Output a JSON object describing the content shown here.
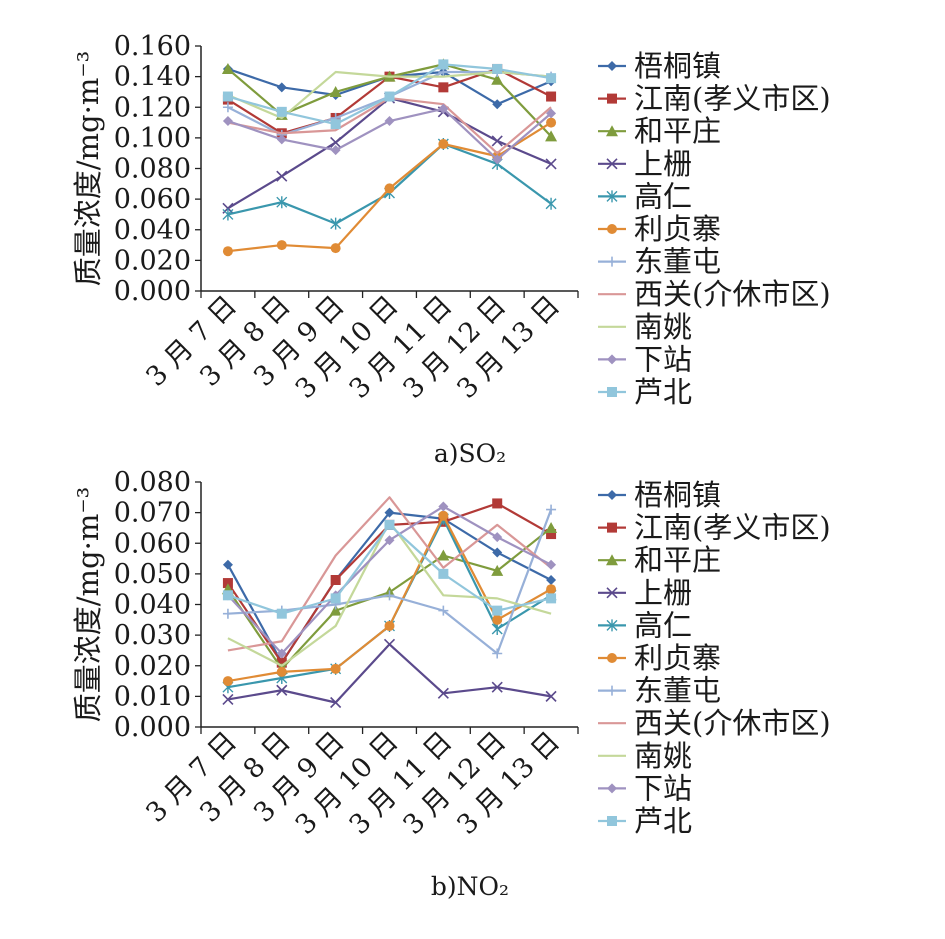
{
  "colors": [
    "#3d6aa8",
    "#b23a37",
    "#7f9c3d",
    "#5b4a8c",
    "#3a97ad",
    "#e08b35",
    "#97b0d8",
    "#d99797",
    "#c4d89a",
    "#9f92c0",
    "#91c6dc"
  ],
  "legend": [
    "梧桐镇",
    "江南(孝义市区)",
    "和平庄",
    "上栅",
    "高仁",
    "利贞寨",
    "东董屯",
    "西关(介休市区)",
    "南姚",
    "下站",
    "芦北"
  ],
  "chart_data": [
    {
      "type": "line",
      "caption": "a)SO₂",
      "ylabel": "质量浓度/mg·m⁻³",
      "categories": [
        "3 月 7 日",
        "3 月 8 日",
        "3 月 9 日",
        "3 月 10 日",
        "3 月 11 日",
        "3 月 12 日",
        "3 月 13 日"
      ],
      "ylim": [
        0.0,
        0.16
      ],
      "yticks": [
        "0.000",
        "0.020",
        "0.040",
        "0.060",
        "0.080",
        "0.100",
        "0.120",
        "0.140",
        "0.160"
      ],
      "series": [
        {
          "name": "梧桐镇",
          "values": [
            0.145,
            0.133,
            0.128,
            0.14,
            0.143,
            0.122,
            0.137
          ]
        },
        {
          "name": "江南(孝义市区)",
          "values": [
            0.125,
            0.103,
            0.113,
            0.14,
            0.133,
            0.145,
            0.127
          ]
        },
        {
          "name": "和平庄",
          "values": [
            0.145,
            0.115,
            0.13,
            0.14,
            0.148,
            0.138,
            0.101
          ]
        },
        {
          "name": "上栅",
          "values": [
            0.054,
            0.075,
            0.097,
            0.126,
            0.117,
            0.098,
            0.083
          ]
        },
        {
          "name": "高仁",
          "values": [
            0.05,
            0.058,
            0.044,
            0.064,
            0.096,
            0.083,
            0.057
          ]
        },
        {
          "name": "利贞寨",
          "values": [
            0.026,
            0.03,
            0.028,
            0.067,
            0.096,
            0.088,
            0.11
          ]
        },
        {
          "name": "东董屯",
          "values": [
            0.12,
            0.102,
            0.113,
            0.127,
            0.143,
            0.143,
            0.14
          ]
        },
        {
          "name": "西关(介休市区)",
          "values": [
            0.11,
            0.103,
            0.105,
            0.126,
            0.122,
            0.09,
            0.12
          ]
        },
        {
          "name": "南姚",
          "values": [
            0.128,
            0.113,
            0.143,
            0.14,
            0.14,
            0.143,
            0.14
          ]
        },
        {
          "name": "下站",
          "values": [
            0.111,
            0.099,
            0.092,
            0.111,
            0.119,
            0.086,
            0.116
          ]
        },
        {
          "name": "芦北",
          "values": [
            0.127,
            0.117,
            0.109,
            0.127,
            0.148,
            0.145,
            0.139
          ]
        }
      ]
    },
    {
      "type": "line",
      "caption": "b)NO₂",
      "ylabel": "质量浓度/mg·m⁻³",
      "categories": [
        "3 月 7 日",
        "3 月 8 日",
        "3 月 9 日",
        "3 月 10 日",
        "3 月 11 日",
        "3 月 12 日",
        "3 月 13 日"
      ],
      "ylim": [
        0.0,
        0.08
      ],
      "yticks": [
        "0.000",
        "0.010",
        "0.020",
        "0.030",
        "0.040",
        "0.050",
        "0.060",
        "0.070",
        "0.080"
      ],
      "series": [
        {
          "name": "梧桐镇",
          "values": [
            0.053,
            0.021,
            0.048,
            0.07,
            0.068,
            0.057,
            0.048
          ]
        },
        {
          "name": "江南(孝义市区)",
          "values": [
            0.047,
            0.021,
            0.048,
            0.066,
            0.067,
            0.073,
            0.063
          ]
        },
        {
          "name": "和平庄",
          "values": [
            0.045,
            0.019,
            0.038,
            0.044,
            0.056,
            0.051,
            0.065
          ]
        },
        {
          "name": "上栅",
          "values": [
            0.009,
            0.012,
            0.008,
            0.027,
            0.011,
            0.013,
            0.01
          ]
        },
        {
          "name": "高仁",
          "values": [
            0.013,
            0.016,
            0.019,
            0.033,
            0.068,
            0.032,
            0.043
          ]
        },
        {
          "name": "利贞寨",
          "values": [
            0.015,
            0.018,
            0.019,
            0.033,
            0.069,
            0.035,
            0.045
          ]
        },
        {
          "name": "东董屯",
          "values": [
            0.037,
            0.038,
            0.04,
            0.043,
            0.038,
            0.024,
            0.071
          ]
        },
        {
          "name": "西关(介休市区)",
          "values": [
            0.025,
            0.028,
            0.056,
            0.075,
            0.052,
            0.066,
            0.052
          ]
        },
        {
          "name": "南姚",
          "values": [
            0.029,
            0.02,
            0.033,
            0.067,
            0.043,
            0.042,
            0.037
          ]
        },
        {
          "name": "下站",
          "values": [
            0.043,
            0.024,
            0.043,
            0.061,
            0.072,
            0.062,
            0.053
          ]
        },
        {
          "name": "芦北",
          "values": [
            0.043,
            0.037,
            0.042,
            0.066,
            0.05,
            0.038,
            0.042
          ]
        }
      ]
    }
  ]
}
